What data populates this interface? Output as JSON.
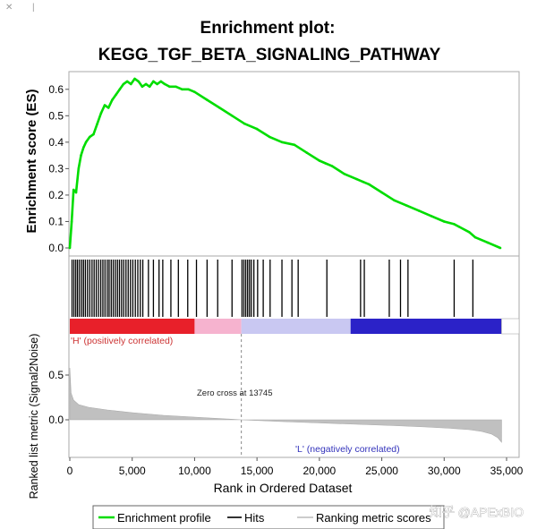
{
  "corner_marks": {
    "left": "✕",
    "right": "|"
  },
  "colors": {
    "es_line": "#00dd00",
    "hit_line": "#000000",
    "metric_fill": "#c0c0c0",
    "pos_label": "#cc3333",
    "neg_label": "#3333bb",
    "heat_red": "#e8202a",
    "heat_pink": "#f6b3cf",
    "heat_lav": "#c9c8f2",
    "heat_blue": "#2b22c8"
  },
  "chart_data": {
    "type": "line",
    "title_line1": "Enrichment plot:",
    "title_line2": "KEGG_TGF_BETA_SIGNALING_PATHWAY",
    "es_ylabel": "Enrichment score (ES)",
    "metric_ylabel": "Ranked list metric (Signal2Noise)",
    "xlabel": "Rank in Ordered Dataset",
    "xlim": [
      0,
      35000
    ],
    "x_ticks": [
      0,
      5000,
      10000,
      15000,
      20000,
      25000,
      30000,
      35000
    ],
    "x_tick_labels": [
      "0",
      "5,000",
      "10,000",
      "15,000",
      "20,000",
      "25,000",
      "30,000",
      "35,000"
    ],
    "es_ylim": [
      0,
      0.65
    ],
    "es_ticks": [
      0.0,
      0.1,
      0.2,
      0.3,
      0.4,
      0.5,
      0.6
    ],
    "es_tick_labels": [
      "0.0",
      "0.1",
      "0.2",
      "0.3",
      "0.4",
      "0.5",
      "0.6"
    ],
    "metric_ylim": [
      -0.25,
      0.6
    ],
    "metric_ticks": [
      0.0,
      0.5
    ],
    "metric_tick_labels": [
      "0.0",
      "0.5"
    ],
    "series": [
      {
        "name": "Enrichment profile",
        "x": [
          0,
          150,
          300,
          500,
          700,
          900,
          1100,
          1300,
          1600,
          1900,
          2200,
          2500,
          2800,
          3100,
          3400,
          3700,
          4000,
          4300,
          4600,
          4900,
          5200,
          5500,
          5800,
          6100,
          6400,
          6700,
          7000,
          7300,
          7600,
          8000,
          8500,
          9000,
          9500,
          10000,
          11000,
          12000,
          13000,
          14000,
          15000,
          16000,
          17000,
          18000,
          19000,
          20000,
          20500,
          21000,
          22000,
          23000,
          23500,
          24000,
          25000,
          26000,
          27000,
          28000,
          29000,
          30000,
          30800,
          31200,
          32000,
          32500,
          33500,
          34500
        ],
        "y": [
          0.0,
          0.1,
          0.22,
          0.21,
          0.3,
          0.35,
          0.38,
          0.4,
          0.42,
          0.43,
          0.47,
          0.51,
          0.54,
          0.53,
          0.56,
          0.58,
          0.6,
          0.62,
          0.63,
          0.62,
          0.64,
          0.63,
          0.61,
          0.62,
          0.61,
          0.63,
          0.62,
          0.63,
          0.62,
          0.61,
          0.61,
          0.6,
          0.6,
          0.59,
          0.56,
          0.53,
          0.5,
          0.47,
          0.45,
          0.42,
          0.4,
          0.39,
          0.36,
          0.33,
          0.32,
          0.31,
          0.28,
          0.26,
          0.25,
          0.24,
          0.21,
          0.18,
          0.16,
          0.14,
          0.12,
          0.1,
          0.09,
          0.08,
          0.06,
          0.04,
          0.02,
          0.0
        ]
      }
    ],
    "hits": [
      180,
      330,
      480,
      620,
      780,
      950,
      1100,
      1250,
      1420,
      1600,
      1780,
      1950,
      2120,
      2300,
      2480,
      2650,
      2820,
      3000,
      3150,
      3320,
      3480,
      3650,
      3820,
      3980,
      4150,
      4320,
      4500,
      4680,
      4860,
      5050,
      5250,
      5450,
      5650,
      5850,
      6300,
      6700,
      7150,
      7450,
      8100,
      8700,
      9450,
      10150,
      11000,
      11850,
      13000,
      13800,
      13950,
      14100,
      14250,
      14400,
      14550,
      14750,
      15050,
      15500,
      16050,
      17000,
      17800,
      18300,
      20600,
      23300,
      23600,
      25600,
      26500,
      27100,
      30800,
      32300
    ],
    "metric_curve": {
      "x": [
        0,
        100,
        300,
        700,
        1500,
        3000,
        5000,
        7500,
        10000,
        13745,
        17000,
        20000,
        23000,
        26000,
        28500,
        30500,
        32000,
        33000,
        33800,
        34300,
        34600
      ],
      "y": [
        0.58,
        0.3,
        0.22,
        0.17,
        0.14,
        0.11,
        0.08,
        0.05,
        0.03,
        0.0,
        -0.02,
        -0.035,
        -0.05,
        -0.065,
        -0.08,
        -0.095,
        -0.11,
        -0.13,
        -0.16,
        -0.2,
        -0.25
      ]
    },
    "heatmap_segments": [
      {
        "from": 0,
        "to": 10000,
        "color": "heat_red"
      },
      {
        "from": 10000,
        "to": 13745,
        "color": "heat_pink"
      },
      {
        "from": 13745,
        "to": 22500,
        "color": "heat_lav"
      },
      {
        "from": 22500,
        "to": 34600,
        "color": "heat_blue"
      }
    ],
    "zero_cross": 13745,
    "zero_cross_label": "Zero cross at 13745",
    "pos_label": "'H' (positively correlated)",
    "neg_label": "'L' (negatively correlated)",
    "legend": {
      "position": "bottom",
      "items": [
        {
          "label": "Enrichment profile",
          "color": "es_line"
        },
        {
          "label": "Hits",
          "color": "hit_line"
        },
        {
          "label": "Ranking metric scores",
          "color": "metric_fill"
        }
      ]
    }
  },
  "watermark": "知乎 @APExBIO"
}
